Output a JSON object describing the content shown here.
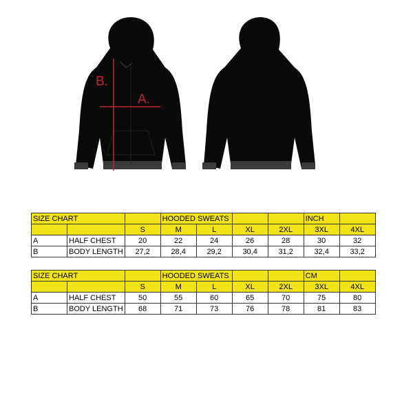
{
  "figure": {
    "labels": {
      "a": "A.",
      "b": "B."
    },
    "colors": {
      "garment": "#0a0a0a",
      "rib": "#3a3a3a",
      "measure": "#c0282d",
      "header": "#f2e218"
    }
  },
  "tables": [
    {
      "title": "SIZE CHART",
      "product": "HOODED SWEATS",
      "unit": "INCH",
      "sizes": [
        "S",
        "M",
        "L",
        "XL",
        "2XL",
        "3XL",
        "4XL"
      ],
      "rows": [
        {
          "code": "A",
          "name": "HALF CHEST",
          "values": [
            "20",
            "22",
            "24",
            "26",
            "28",
            "30",
            "32"
          ]
        },
        {
          "code": "B",
          "name": "BODY LENGTH",
          "values": [
            "27,2",
            "28,4",
            "29,2",
            "30,4",
            "31,2",
            "32,4",
            "33,2"
          ]
        }
      ]
    },
    {
      "title": "SIZE CHART",
      "product": "HOODED SWEATS",
      "unit": "CM",
      "sizes": [
        "S",
        "M",
        "L",
        "XL",
        "2XL",
        "3XL",
        "4XL"
      ],
      "rows": [
        {
          "code": "A",
          "name": "HALF CHEST",
          "values": [
            "50",
            "55",
            "60",
            "65",
            "70",
            "75",
            "80"
          ]
        },
        {
          "code": "B",
          "name": "BODY LENGTH",
          "values": [
            "68",
            "71",
            "73",
            "76",
            "78",
            "81",
            "83"
          ]
        }
      ]
    }
  ]
}
